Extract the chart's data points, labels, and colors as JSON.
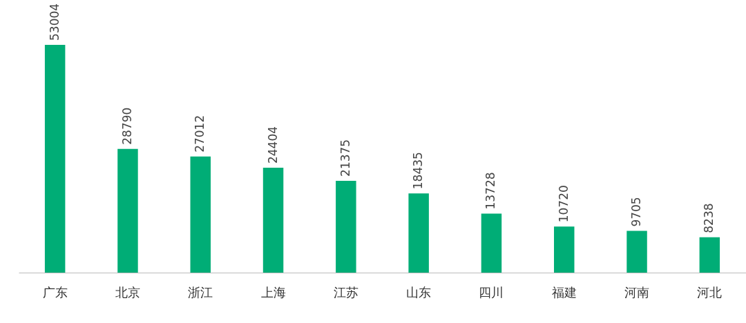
{
  "chart_data": {
    "type": "bar",
    "categories": [
      "广东",
      "北京",
      "浙江",
      "上海",
      "江苏",
      "山东",
      "四川",
      "福建",
      "河南",
      "河北"
    ],
    "values": [
      53004,
      28790,
      27012,
      24404,
      21375,
      18435,
      13728,
      10720,
      9705,
      8238
    ],
    "color": "#00ad76",
    "data_labels": true
  }
}
